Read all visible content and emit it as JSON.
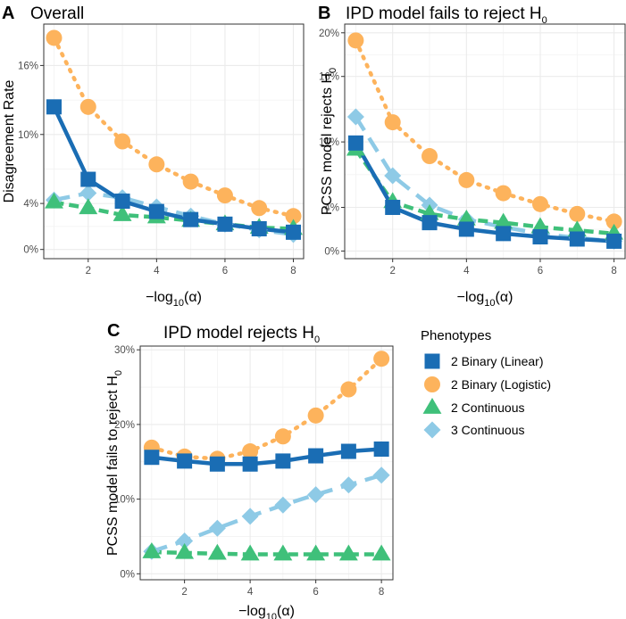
{
  "legend": {
    "title": "Phenotypes",
    "entries": [
      {
        "name": "2 Binary (Linear)",
        "color": "#1a6db4",
        "shape": "square",
        "dash": "solid"
      },
      {
        "name": "2 Binary (Logistic)",
        "color": "#fdb35c",
        "shape": "circle",
        "dash": "dotted"
      },
      {
        "name": "2 Continuous",
        "color": "#3fc07a",
        "shape": "triangle",
        "dash": "dashed"
      },
      {
        "name": "3 Continuous",
        "color": "#8ecae6",
        "shape": "diamond",
        "dash": "longdash"
      }
    ]
  },
  "chart_data": [
    {
      "id": "A",
      "letter": "A",
      "type": "line",
      "title": "Overall",
      "xlabel": {
        "pre": "−log",
        "sub": "10",
        "post": "(α)"
      },
      "ylabel": {
        "pre": "Disagreement Rate",
        "sub": "",
        "post": ""
      },
      "xlim": [
        0.7,
        8.3
      ],
      "ylim": [
        -0.008,
        0.196
      ],
      "xticks": [
        2,
        4,
        6,
        8
      ],
      "yticks": [
        0,
        0.04,
        0.1,
        0.16
      ],
      "ytick_labels": [
        "0%",
        "4%",
        "10%",
        "16%"
      ],
      "x": [
        1,
        2,
        3,
        4,
        5,
        6,
        7,
        8
      ],
      "series": [
        {
          "name": "2 Binary (Logistic)",
          "values": [
            0.184,
            0.124,
            0.094,
            0.074,
            0.059,
            0.047,
            0.036,
            0.029
          ]
        },
        {
          "name": "3 Continuous",
          "values": [
            0.043,
            0.049,
            0.045,
            0.037,
            0.029,
            0.022,
            0.017,
            0.013
          ]
        },
        {
          "name": "2 Continuous",
          "values": [
            0.041,
            0.036,
            0.03,
            0.028,
            0.025,
            0.022,
            0.019,
            0.018
          ]
        },
        {
          "name": "2 Binary (Linear)",
          "values": [
            0.124,
            0.061,
            0.042,
            0.033,
            0.026,
            0.022,
            0.018,
            0.015
          ]
        }
      ]
    },
    {
      "id": "B",
      "letter": "B",
      "type": "line",
      "title": "IPD model fails to reject H",
      "title_sub": "0",
      "xlabel": {
        "pre": "−log",
        "sub": "10",
        "post": "(α)"
      },
      "ylabel": {
        "pre": "PCSS model rejects H",
        "sub": "0",
        "post": ""
      },
      "xlim": [
        0.7,
        8.3
      ],
      "ylim": [
        -0.007,
        0.208
      ],
      "xticks": [
        2,
        4,
        6,
        8
      ],
      "yticks": [
        0,
        0.04,
        0.1,
        0.16,
        0.2
      ],
      "ytick_labels": [
        "0%",
        "4%",
        "10%",
        "16%",
        "20%"
      ],
      "x": [
        1,
        2,
        3,
        4,
        5,
        6,
        7,
        8
      ],
      "series": [
        {
          "name": "2 Binary (Logistic)",
          "values": [
            0.193,
            0.118,
            0.087,
            0.065,
            0.053,
            0.043,
            0.034,
            0.027
          ]
        },
        {
          "name": "3 Continuous",
          "values": [
            0.123,
            0.069,
            0.042,
            0.029,
            0.022,
            0.016,
            0.012,
            0.009
          ]
        },
        {
          "name": "2 Continuous",
          "values": [
            0.093,
            0.045,
            0.034,
            0.029,
            0.026,
            0.022,
            0.019,
            0.016
          ]
        },
        {
          "name": "2 Binary (Linear)",
          "values": [
            0.099,
            0.04,
            0.026,
            0.02,
            0.016,
            0.013,
            0.011,
            0.009
          ]
        }
      ]
    },
    {
      "id": "C",
      "letter": "C",
      "type": "line",
      "title": "IPD model rejects H",
      "title_sub": "0",
      "xlabel": {
        "pre": "−log",
        "sub": "10",
        "post": "(α)"
      },
      "ylabel": {
        "pre": "PCSS model fails to reject H",
        "sub": "0",
        "post": ""
      },
      "xlim": [
        0.65,
        8.35
      ],
      "ylim": [
        -0.008,
        0.305
      ],
      "xticks": [
        2,
        4,
        6,
        8
      ],
      "yticks": [
        0,
        0.1,
        0.2,
        0.3
      ],
      "ytick_labels": [
        "0%",
        "10%",
        "20%",
        "30%"
      ],
      "x": [
        1,
        2,
        3,
        4,
        5,
        6,
        7,
        8
      ],
      "series": [
        {
          "name": "2 Binary (Logistic)",
          "values": [
            0.169,
            0.157,
            0.154,
            0.164,
            0.184,
            0.212,
            0.247,
            0.288
          ]
        },
        {
          "name": "3 Continuous",
          "values": [
            0.03,
            0.044,
            0.061,
            0.077,
            0.092,
            0.106,
            0.119,
            0.132
          ]
        },
        {
          "name": "2 Continuous",
          "values": [
            0.029,
            0.028,
            0.027,
            0.026,
            0.026,
            0.026,
            0.026,
            0.026
          ]
        },
        {
          "name": "2 Binary (Linear)",
          "values": [
            0.156,
            0.151,
            0.147,
            0.147,
            0.151,
            0.158,
            0.164,
            0.167
          ]
        }
      ]
    }
  ]
}
